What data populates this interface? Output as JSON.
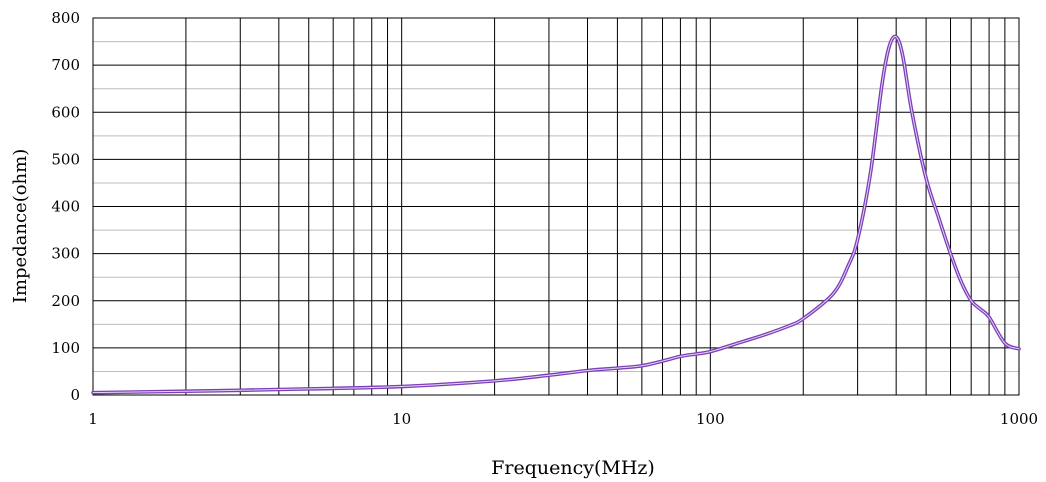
{
  "chart_data": {
    "type": "line",
    "title": "",
    "xlabel": "Frequency(MHz)",
    "ylabel": "Impedance(ohm)",
    "x_scale": "log",
    "xlim": [
      1,
      1000
    ],
    "ylim": [
      0,
      800
    ],
    "x_ticks": [
      1,
      10,
      100,
      1000
    ],
    "x_tick_labels": [
      "1",
      "10",
      "100",
      "1000"
    ],
    "y_ticks": [
      0,
      100,
      200,
      300,
      400,
      500,
      600,
      700,
      800
    ],
    "y_tick_labels": [
      "0",
      "100",
      "200",
      "300",
      "400",
      "500",
      "600",
      "700",
      "800"
    ],
    "grid": true,
    "legend": "none",
    "line_color": "#7b3fb8",
    "line_highlight_color": "#e6d4f5",
    "series": [
      {
        "x": [
          1,
          2,
          3,
          5,
          10,
          20,
          30,
          40,
          50,
          60,
          70,
          80,
          90,
          100,
          120,
          150,
          180,
          200,
          250,
          280,
          300,
          330,
          360,
          380,
          400,
          420,
          450,
          500,
          550,
          600,
          650,
          700,
          750,
          800,
          900,
          1000
        ],
        "values": [
          5,
          8,
          10,
          13,
          18,
          30,
          42,
          52,
          57,
          62,
          72,
          82,
          87,
          92,
          108,
          128,
          147,
          162,
          215,
          275,
          330,
          470,
          660,
          740,
          760,
          720,
          600,
          460,
          375,
          300,
          240,
          200,
          182,
          165,
          110,
          98
        ]
      }
    ]
  }
}
